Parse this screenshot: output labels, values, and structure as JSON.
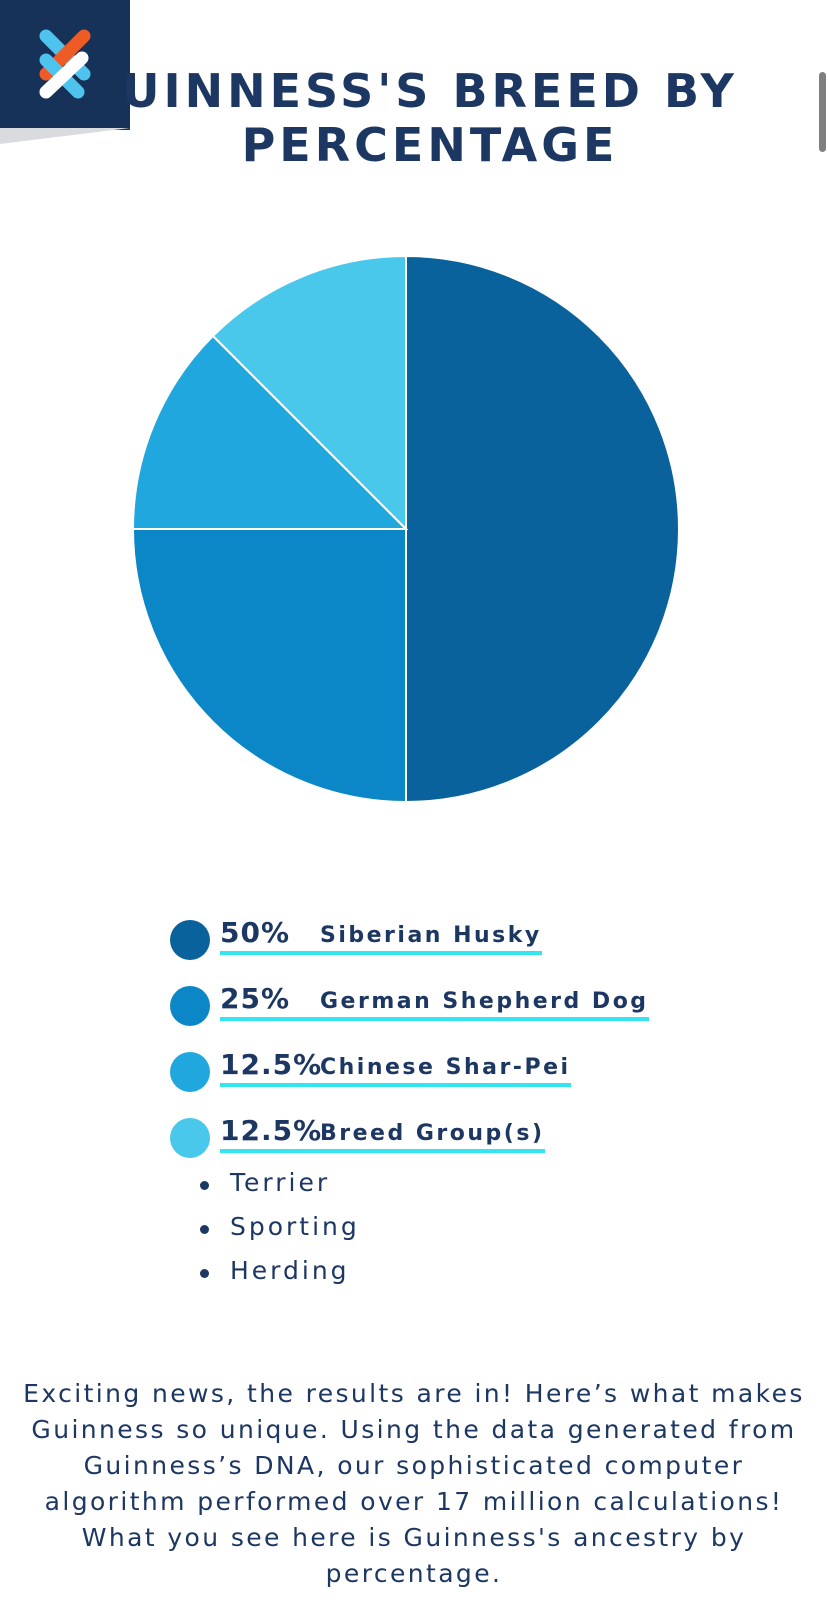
{
  "header": {
    "title": "UINNESS'S BREED BY PERCENTAGE",
    "logo_icon": "crossed-strands-logo-icon"
  },
  "chart_data": {
    "type": "pie",
    "title": "UINNESS'S BREED BY PERCENTAGE",
    "slices": [
      {
        "label": "Siberian Husky",
        "value": 50,
        "display": "50%",
        "color": "#0a629c"
      },
      {
        "label": "German Shepherd Dog",
        "value": 25,
        "display": "25%",
        "color": "#0b87c8"
      },
      {
        "label": "Chinese Shar-Pei",
        "value": 12.5,
        "display": "12.5%",
        "color": "#20a7de"
      },
      {
        "label": "Breed Group(s)",
        "value": 12.5,
        "display": "12.5%",
        "color": "#4ac8ec"
      }
    ]
  },
  "legend": {
    "items": [
      {
        "pct": "50%",
        "label": "Siberian Husky"
      },
      {
        "pct": "25%",
        "label": "German Shepherd Dog"
      },
      {
        "pct": "12.5%",
        "label": "Chinese Shar-Pei"
      },
      {
        "pct": "12.5%",
        "label": "Breed Group(s)"
      }
    ],
    "underline_color": "#33e4f1"
  },
  "breed_groups": [
    "Terrier",
    "Sporting",
    "Herding"
  ],
  "description": "Exciting news, the results are in! Here’s what makes Guinness so unique. Using the data generated from Guinness’s DNA, our sophisticated computer algorithm performed over 17 million calculations! What you see here is Guinness's ancestry by percentage.",
  "colors": {
    "navy": "#173259",
    "text": "#1d3763",
    "logo_orange": "#ef5b25",
    "logo_blue": "#4ec3ee"
  }
}
